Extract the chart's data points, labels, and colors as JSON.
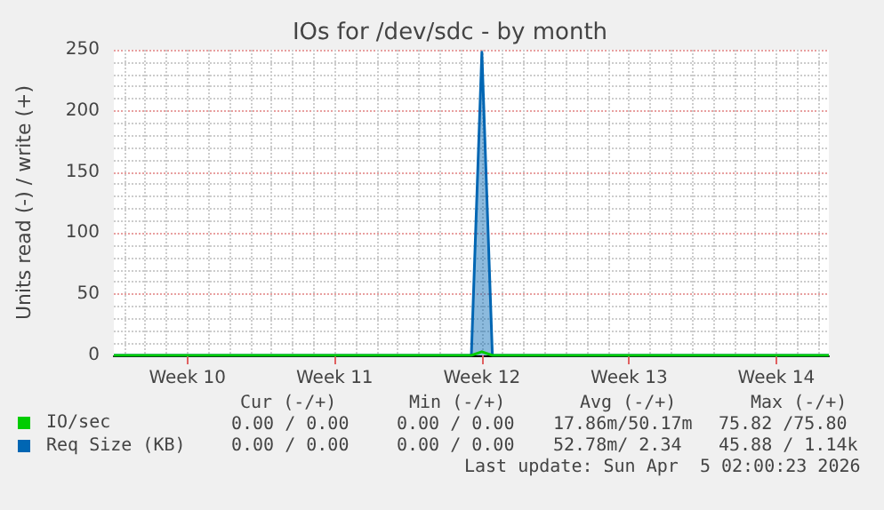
{
  "chart_data": {
    "type": "line",
    "title": "IOs for /dev/sdc - by month",
    "ylabel": "Units read (-) / write (+)",
    "categories": [
      null,
      null,
      null,
      null,
      null,
      null,
      null,
      "Week 10",
      null,
      null,
      null,
      null,
      null,
      null,
      null,
      null,
      null,
      null,
      null,
      null,
      null,
      "Week 11",
      null,
      null,
      null,
      null,
      null,
      null,
      null,
      null,
      null,
      null,
      null,
      null,
      null,
      "Week 12",
      null,
      null,
      null,
      null,
      null,
      null,
      null,
      null,
      null,
      null,
      null,
      null,
      null,
      "Week 13",
      null,
      null,
      null,
      null,
      null,
      null,
      null,
      null,
      null,
      null,
      null,
      null,
      null,
      "Week 14",
      null,
      null,
      null,
      null,
      null
    ],
    "series": [
      {
        "name": "IO/sec",
        "color": "#00cc00",
        "values": [
          0,
          0,
          0,
          0,
          0,
          0,
          0,
          0,
          0,
          0,
          0,
          0,
          0,
          0,
          0,
          0,
          0,
          0,
          0,
          0,
          0,
          0,
          0,
          0,
          0,
          0,
          0,
          0,
          0,
          0,
          0,
          0,
          0,
          0,
          0,
          3,
          0,
          0,
          0,
          0,
          0,
          0,
          0,
          0,
          0,
          0,
          0,
          0,
          0,
          0,
          0,
          0,
          0,
          0,
          0,
          0,
          0,
          0,
          0,
          0,
          0,
          0,
          0,
          0,
          0,
          0,
          0,
          0,
          0
        ]
      },
      {
        "name": "Req Size (KB)",
        "type": "area",
        "color": "#0066b3",
        "values": [
          0,
          0,
          0,
          0,
          0,
          0,
          0,
          0,
          0,
          0,
          0,
          0,
          0,
          0,
          0,
          0,
          0,
          0,
          0,
          0,
          0,
          0,
          0,
          0,
          0,
          0,
          0,
          0,
          0,
          0,
          0,
          0,
          0,
          0,
          0,
          248,
          0,
          0,
          0,
          0,
          0,
          0,
          0,
          0,
          0,
          0,
          0,
          0,
          0,
          0,
          0,
          0,
          0,
          0,
          0,
          0,
          0,
          0,
          0,
          0,
          0,
          0,
          0,
          0,
          0,
          0,
          0,
          0,
          0
        ]
      }
    ],
    "ylim": [
      0,
      250
    ],
    "yticks": [
      0,
      50,
      100,
      150,
      200,
      250
    ],
    "grid": true,
    "legend": "bottom left",
    "marker": "none",
    "annotations": [
      "Cur (-/+)",
      "Min (-/+)",
      "Avg (-/+)",
      "Max (-/+)",
      "0.00 / 0.00",
      "0.00 / 0.00",
      "17.86m/50.17m",
      "75.82 /75.80",
      "0.00 / 0.00",
      "0.00 / 0.00",
      "52.78m/ 2.34",
      "45.88 / 1.14k",
      "Last update: Sun Apr  5 02:00:23 2026"
    ]
  }
}
